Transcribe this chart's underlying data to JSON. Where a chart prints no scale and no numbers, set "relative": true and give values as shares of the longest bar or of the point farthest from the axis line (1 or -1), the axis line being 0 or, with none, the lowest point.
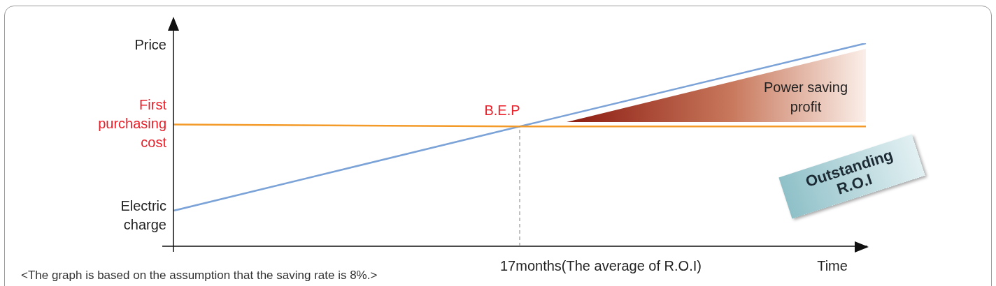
{
  "chart_data": {
    "type": "line",
    "relative": true,
    "ylabel": "Price",
    "xlabel": "Time",
    "categories": [
      null,
      null,
      null
    ],
    "series": [
      {
        "name": "First purchasing cost",
        "color": "#f39a28",
        "values": [
          0.6,
          0.59,
          0.59
        ]
      },
      {
        "name": "Electric charge",
        "color": "#7ba3d8",
        "values": [
          0.175,
          0.59,
          1
        ]
      }
    ],
    "annotations": [
      "B.E.P",
      "17months(The average of R.O.I)",
      "Power saving profit",
      "Outstanding R.O.I",
      "<The graph is based on the assumption that the saving rate is 8%.>"
    ],
    "legend": false,
    "marker": "none"
  }
}
